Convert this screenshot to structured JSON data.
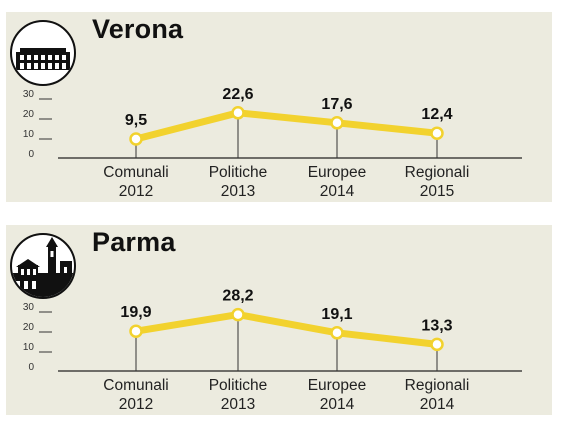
{
  "chart_data": [
    {
      "type": "line",
      "title": "Verona",
      "categories": [
        "Comunali\n2012",
        "Politiche\n2013",
        "Europee\n2014",
        "Regionali\n2015"
      ],
      "values": [
        9.5,
        22.6,
        17.6,
        12.4
      ],
      "value_labels": [
        "9,5",
        "22,6",
        "17,6",
        "12,4"
      ],
      "y_ticks": [
        "0",
        "10",
        "20",
        "30"
      ],
      "ylim": [
        0,
        30
      ],
      "grid": false,
      "colors": {
        "line": "#f2d22e",
        "marker": "#ffffff",
        "background": "#ecebdf"
      },
      "emblem_icon": "arena-colosseum-icon"
    },
    {
      "type": "line",
      "title": "Parma",
      "categories": [
        "Comunali\n2012",
        "Politiche\n2013",
        "Europee\n2014",
        "Regionali\n2014"
      ],
      "values": [
        19.9,
        28.2,
        19.1,
        13.3
      ],
      "value_labels": [
        "19,9",
        "28,2",
        "19,1",
        "13,3"
      ],
      "y_ticks": [
        "0",
        "10",
        "20",
        "30"
      ],
      "ylim": [
        0,
        30
      ],
      "grid": false,
      "colors": {
        "line": "#f2d22e",
        "marker": "#ffffff",
        "background": "#ecebdf"
      },
      "emblem_icon": "cathedral-skyline-icon"
    }
  ]
}
